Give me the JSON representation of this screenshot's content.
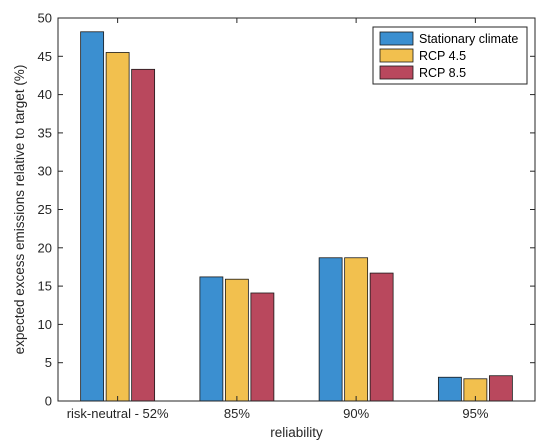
{
  "chart_data": {
    "type": "bar",
    "title": "",
    "xlabel": "reliability",
    "ylabel": "expected excess emissions relative to target (%)",
    "categories": [
      "risk-neutral - 52%",
      "85%",
      "90%",
      "95%"
    ],
    "ylim": [
      0,
      50
    ],
    "yticks": [
      0,
      5,
      10,
      15,
      20,
      25,
      30,
      35,
      40,
      45,
      50
    ],
    "grid": false,
    "legend_position": "top-right",
    "series": [
      {
        "name": "Stationary climate",
        "color": "#3b8fd0",
        "values": [
          48.2,
          16.2,
          18.7,
          3.1
        ]
      },
      {
        "name": "RCP 4.5",
        "color": "#f2c04e",
        "values": [
          45.5,
          15.9,
          18.7,
          2.9
        ]
      },
      {
        "name": "RCP 8.5",
        "color": "#b9485d",
        "values": [
          43.3,
          14.1,
          16.7,
          3.3
        ]
      }
    ]
  }
}
